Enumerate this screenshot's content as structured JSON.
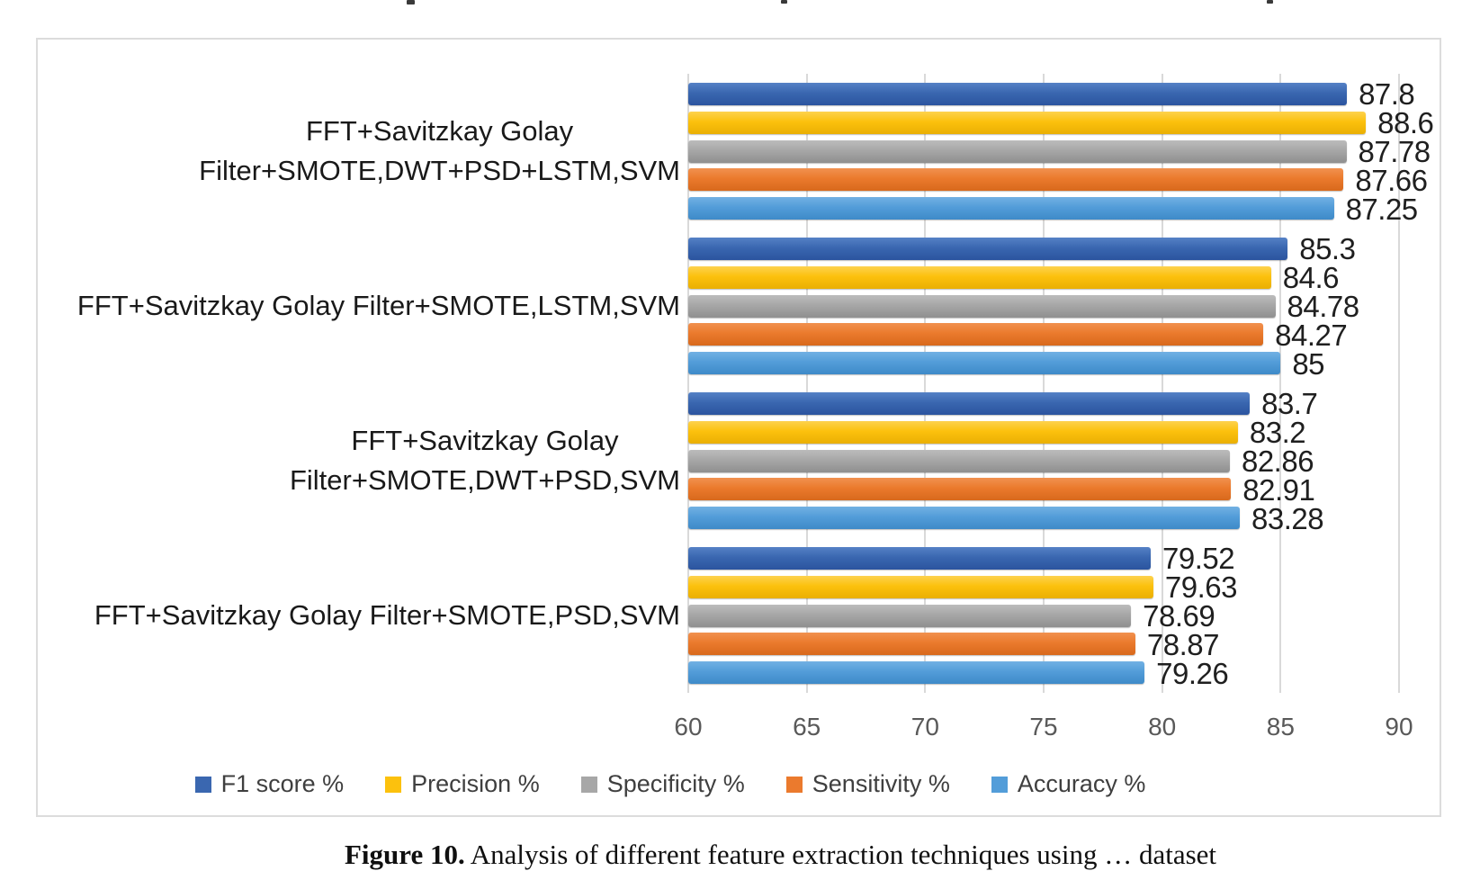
{
  "page": {
    "caption": {
      "prefix": "Figure 10.",
      "text": "Analysis of different feature extraction techniques using … dataset"
    }
  },
  "chart_data": {
    "type": "bar",
    "orientation": "horizontal",
    "title": "",
    "xlabel": "",
    "ylabel": "",
    "xlim": [
      60,
      90
    ],
    "xticks": [
      60,
      65,
      70,
      75,
      80,
      85,
      90
    ],
    "grid": true,
    "legend_position": "bottom",
    "categories": [
      "FFT+Savitzkay Golay Filter+SMOTE,DWT+PSD+LSTM,SVM",
      "FFT+Savitzkay Golay Filter+SMOTE,LSTM,SVM",
      "FFT+Savitzkay Golay Filter+SMOTE,DWT+PSD,SVM",
      "FFT+Savitzkay Golay Filter+SMOTE,PSD,SVM"
    ],
    "category_lines": [
      [
        "FFT+Savitzkay Golay",
        "Filter+SMOTE,DWT+PSD+LSTM,SVM"
      ],
      [
        "FFT+Savitzkay Golay Filter+SMOTE,LSTM,SVM"
      ],
      [
        "FFT+Savitzkay Golay",
        "Filter+SMOTE,DWT+PSD,SVM"
      ],
      [
        "FFT+Savitzkay Golay Filter+SMOTE,PSD,SVM"
      ]
    ],
    "series": [
      {
        "name": "F1 score %",
        "color": "#3a67b0",
        "color_light": "#5581c6",
        "color_dark": "#2b549f",
        "values": [
          87.8,
          85.3,
          83.7,
          79.52
        ]
      },
      {
        "name": "Precision %",
        "color": "#fcc10d",
        "color_light": "#fdd24f",
        "color_dark": "#eaaf03",
        "values": [
          88.6,
          84.6,
          83.2,
          79.63
        ]
      },
      {
        "name": "Specificity %",
        "color": "#a7a7a7",
        "color_light": "#bcbcbc",
        "color_dark": "#8f8f8f",
        "values": [
          87.78,
          84.78,
          82.86,
          78.69
        ]
      },
      {
        "name": "Sensitivity %",
        "color": "#eb7a2d",
        "color_light": "#f1914f",
        "color_dark": "#d8691c",
        "values": [
          87.66,
          84.27,
          82.91,
          78.87
        ]
      },
      {
        "name": "Accuracy %",
        "color": "#539dd9",
        "color_light": "#72b1e3",
        "color_dark": "#3e8ac8",
        "values": [
          87.25,
          85,
          83.28,
          79.26
        ]
      }
    ],
    "colors": {
      "gridline": "#d9d9d9",
      "chart_border": "#dcdcdc",
      "value_label_text": "#1f1f1f",
      "category_label_text": "#191919",
      "tick_label_text": "#595959",
      "legend_text": "#3f3f3f"
    }
  }
}
